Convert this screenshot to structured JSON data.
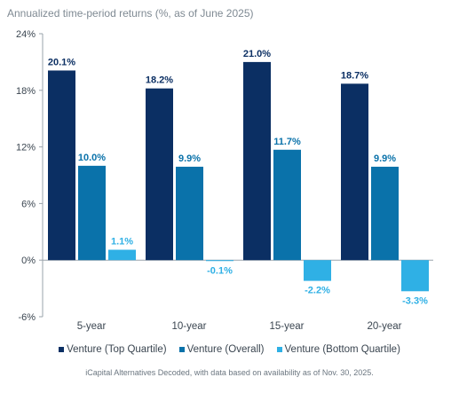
{
  "chart_data": {
    "type": "bar",
    "title": "Annualized time-period returns (%, as of June 2025)",
    "categories": [
      "5-year",
      "10-year",
      "15-year",
      "20-year"
    ],
    "series": [
      {
        "name": "Venture (Top Quartile)",
        "values": [
          20.1,
          18.2,
          21.0,
          18.7
        ],
        "color": "#0b2f63"
      },
      {
        "name": "Venture (Overall)",
        "values": [
          10.0,
          9.9,
          11.7,
          9.9
        ],
        "color": "#0a72aa"
      },
      {
        "name": "Venture (Bottom Quartile)",
        "values": [
          1.1,
          -0.1,
          -2.2,
          -3.3
        ],
        "color": "#2fb0e5"
      }
    ],
    "data_labels": [
      [
        "20.1%",
        "10.0%",
        "1.1%"
      ],
      [
        "18.2%",
        "9.9%",
        "-0.1%"
      ],
      [
        "21.0%",
        "11.7%",
        "-2.2%"
      ],
      [
        "18.7%",
        "9.9%",
        "-3.3%"
      ]
    ],
    "yticks": [
      24,
      18,
      12,
      6,
      0,
      -6
    ],
    "ytick_labels": [
      "24%",
      "18%",
      "12%",
      "6%",
      "0%",
      "-6%"
    ],
    "ylim": [
      -6,
      24
    ],
    "grid": false,
    "legend_position": "bottom"
  },
  "source_note": "iCapital Alternatives Decoded, with data based on availability as of Nov. 30, 2025."
}
